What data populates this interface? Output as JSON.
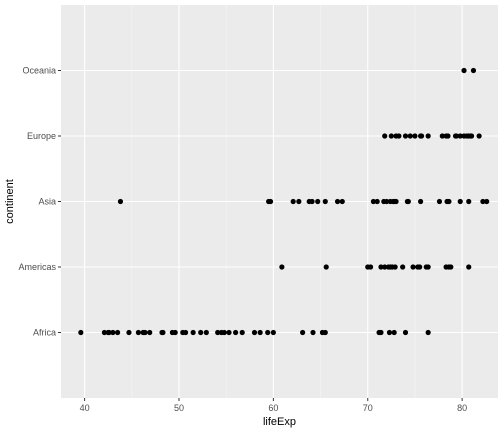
{
  "chart_data": {
    "type": "scatter",
    "title": "",
    "xlabel": "lifeExp",
    "ylabel": "continent",
    "xlim": [
      37.5,
      83.8
    ],
    "x_ticks": [
      40,
      50,
      60,
      70,
      80
    ],
    "x_tick_labels": [
      "40",
      "50",
      "60",
      "70",
      "80"
    ],
    "categories": [
      "Africa",
      "Americas",
      "Asia",
      "Europe",
      "Oceania"
    ],
    "grid": true,
    "legend": "none",
    "colors": {
      "panel": "#ebebeb",
      "grid_major": "#ffffff",
      "grid_minor": "#f5f5f5",
      "point": "#000000",
      "tick_text": "#4d4d4d"
    },
    "series": [
      {
        "category": "Africa",
        "x": [
          39.6,
          42.1,
          42.5,
          42.6,
          43.0,
          43.5,
          44.7,
          45.7,
          46.2,
          46.4,
          46.9,
          48.2,
          48.3,
          49.3,
          49.6,
          50.4,
          50.7,
          51.5,
          52.3,
          52.9,
          54.1,
          54.5,
          54.8,
          55.3,
          56.0,
          56.7,
          58.0,
          58.6,
          59.4,
          60.0,
          63.1,
          64.2,
          65.2,
          65.5,
          71.2,
          71.4,
          72.3,
          72.8,
          74.0,
          76.4
        ]
      },
      {
        "category": "Americas",
        "x": [
          60.9,
          65.6,
          70.0,
          70.3,
          71.4,
          71.8,
          72.2,
          72.4,
          72.6,
          72.9,
          73.7,
          74.8,
          75.3,
          75.5,
          76.2,
          76.4,
          78.3,
          78.6,
          78.8,
          80.7
        ]
      },
      {
        "category": "Asia",
        "x": [
          43.8,
          59.5,
          59.7,
          62.1,
          62.7,
          63.8,
          64.1,
          64.7,
          65.5,
          66.8,
          67.3,
          70.6,
          71.0,
          71.7,
          72.0,
          72.4,
          72.8,
          73.0,
          72.7,
          74.2,
          74.3,
          75.6,
          77.6,
          78.4,
          78.6,
          79.8,
          80.7,
          82.2,
          82.6
        ]
      },
      {
        "category": "Europe",
        "x": [
          71.8,
          72.5,
          73.0,
          73.3,
          74.0,
          74.5,
          75.0,
          75.6,
          75.7,
          76.4,
          77.9,
          78.3,
          78.5,
          79.3,
          79.4,
          79.8,
          80.2,
          80.5,
          80.7,
          80.9,
          81.0,
          81.8
        ]
      },
      {
        "category": "Oceania",
        "x": [
          80.2,
          81.2
        ]
      }
    ]
  }
}
